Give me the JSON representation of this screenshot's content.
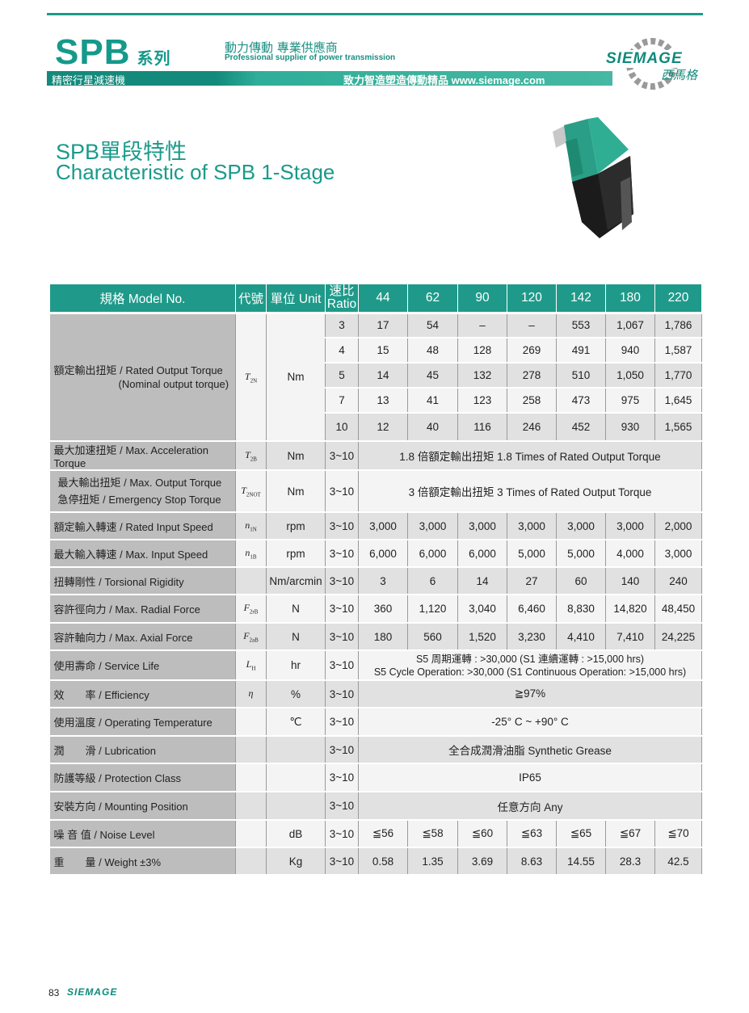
{
  "header": {
    "series": "SPB",
    "series_cn": "系列",
    "slogan_cn": "動力傳動 專業供應商",
    "slogan_en": "Professional supplier of power transmission",
    "band_left": "精密行星減速機",
    "band_right": "致力智造塑造傳動精品  www.siemage.com",
    "logo_text": "SIEMAGE",
    "logo_cn": "西馬格",
    "brand_color": "#1f9a8a"
  },
  "title": {
    "cn": "SPB單段特性",
    "en": "Characteristic of SPB 1-Stage"
  },
  "table": {
    "header": {
      "model": "規格 Model No.",
      "code": "代號",
      "unit": "單位 Unit",
      "ratio_cn": "速比",
      "ratio_en": "Ratio",
      "models": [
        "44",
        "62",
        "90",
        "120",
        "142",
        "180",
        "220"
      ]
    },
    "rated_torque": {
      "label": "額定輸出扭矩 / Rated Output Torque",
      "sublabel": "(Nominal output torque)",
      "symbol": "T",
      "symbol_sub": "2N",
      "unit": "Nm",
      "rows": [
        {
          "ratio": "3",
          "values": [
            "17",
            "54",
            "–",
            "–",
            "553",
            "1,067",
            "1,786"
          ]
        },
        {
          "ratio": "4",
          "values": [
            "15",
            "48",
            "128",
            "269",
            "491",
            "940",
            "1,587"
          ]
        },
        {
          "ratio": "5",
          "values": [
            "14",
            "45",
            "132",
            "278",
            "510",
            "1,050",
            "1,770"
          ]
        },
        {
          "ratio": "7",
          "values": [
            "13",
            "41",
            "123",
            "258",
            "473",
            "975",
            "1,645"
          ]
        },
        {
          "ratio": "10",
          "values": [
            "12",
            "40",
            "116",
            "246",
            "452",
            "930",
            "1,565"
          ]
        }
      ]
    },
    "rows": [
      {
        "label": "最大加速扭矩 / Max. Acceleration Torque",
        "symbol": "T",
        "symbol_sub": "2B",
        "unit": "Nm",
        "ratio": "3~10",
        "span": "1.8 倍額定輸出扭矩  1.8 Times of Rated Output Torque"
      },
      {
        "label": "最大輸出扭矩 / Max. Output Torque",
        "label2": "急停扭矩 / Emergency Stop Torque",
        "symbol": "T",
        "symbol_sub": "2NOT",
        "unit": "Nm",
        "ratio": "3~10",
        "span": "3 倍額定輸出扭矩  3 Times of Rated Output Torque"
      },
      {
        "label": "額定輸入轉速 / Rated Input Speed",
        "symbol": "n",
        "symbol_sub": "1N",
        "unit": "rpm",
        "ratio": "3~10",
        "values": [
          "3,000",
          "3,000",
          "3,000",
          "3,000",
          "3,000",
          "3,000",
          "2,000"
        ]
      },
      {
        "label": "最大輸入轉速 / Max. Input Speed",
        "symbol": "n",
        "symbol_sub": "1B",
        "unit": "rpm",
        "ratio": "3~10",
        "values": [
          "6,000",
          "6,000",
          "6,000",
          "5,000",
          "5,000",
          "4,000",
          "3,000"
        ]
      },
      {
        "label": "扭轉剛性 / Torsional Rigidity",
        "symbol": "",
        "symbol_sub": "",
        "unit": "Nm/arcmin",
        "ratio": "3~10",
        "values": [
          "3",
          "6",
          "14",
          "27",
          "60",
          "140",
          "240"
        ]
      },
      {
        "label": "容許徑向力 / Max. Radial Force",
        "symbol": "F",
        "symbol_sub": "2rB",
        "unit": "N",
        "ratio": "3~10",
        "values": [
          "360",
          "1,120",
          "3,040",
          "6,460",
          "8,830",
          "14,820",
          "48,450"
        ]
      },
      {
        "label": "容許軸向力 / Max. Axial Force",
        "symbol": "F",
        "symbol_sub": "2aB",
        "unit": "N",
        "ratio": "3~10",
        "values": [
          "180",
          "560",
          "1,520",
          "3,230",
          "4,410",
          "7,410",
          "24,225"
        ]
      },
      {
        "label": "使用壽命 / Service Life",
        "symbol": "L",
        "symbol_sub": "H",
        "unit": "hr",
        "ratio": "3~10",
        "span": "S5 周期運轉 : >30,000 (S1 連續運轉 : >15,000 hrs)",
        "span2": "S5 Cycle Operation: >30,000 (S1 Continuous Operation: >15,000 hrs)"
      },
      {
        "label": "效　　率 / Efficiency",
        "symbol": "η",
        "symbol_sub": "",
        "unit": "%",
        "ratio": "3~10",
        "span": "≧97%"
      },
      {
        "label": "使用溫度 / Operating Temperature",
        "symbol": "",
        "symbol_sub": "",
        "unit": "℃",
        "ratio": "3~10",
        "span": "-25° C ~ +90° C"
      },
      {
        "label": "潤　　滑 / Lubrication",
        "symbol": "",
        "symbol_sub": "",
        "unit": "",
        "ratio": "3~10",
        "span": "全合成潤滑油脂 Synthetic Grease"
      },
      {
        "label": "防護等級 / Protection Class",
        "symbol": "",
        "symbol_sub": "",
        "unit": "",
        "ratio": "3~10",
        "span": "IP65"
      },
      {
        "label": "安裝方向 / Mounting Position",
        "symbol": "",
        "symbol_sub": "",
        "unit": "",
        "ratio": "3~10",
        "span": "任意方向 Any"
      },
      {
        "label": "噪 音 值 / Noise Level",
        "symbol": "",
        "symbol_sub": "",
        "unit": "dB",
        "ratio": "3~10",
        "values": [
          "≦56",
          "≦58",
          "≦60",
          "≦63",
          "≦65",
          "≦67",
          "≦70"
        ]
      },
      {
        "label": "重　　量 / Weight ±3%",
        "symbol": "",
        "symbol_sub": "",
        "unit": "Kg",
        "ratio": "3~10",
        "values": [
          "0.58",
          "1.35",
          "3.69",
          "8.63",
          "14.55",
          "28.3",
          "42.5"
        ]
      }
    ]
  },
  "footer": {
    "page": "83",
    "logo_text": "SIEMAGE"
  }
}
